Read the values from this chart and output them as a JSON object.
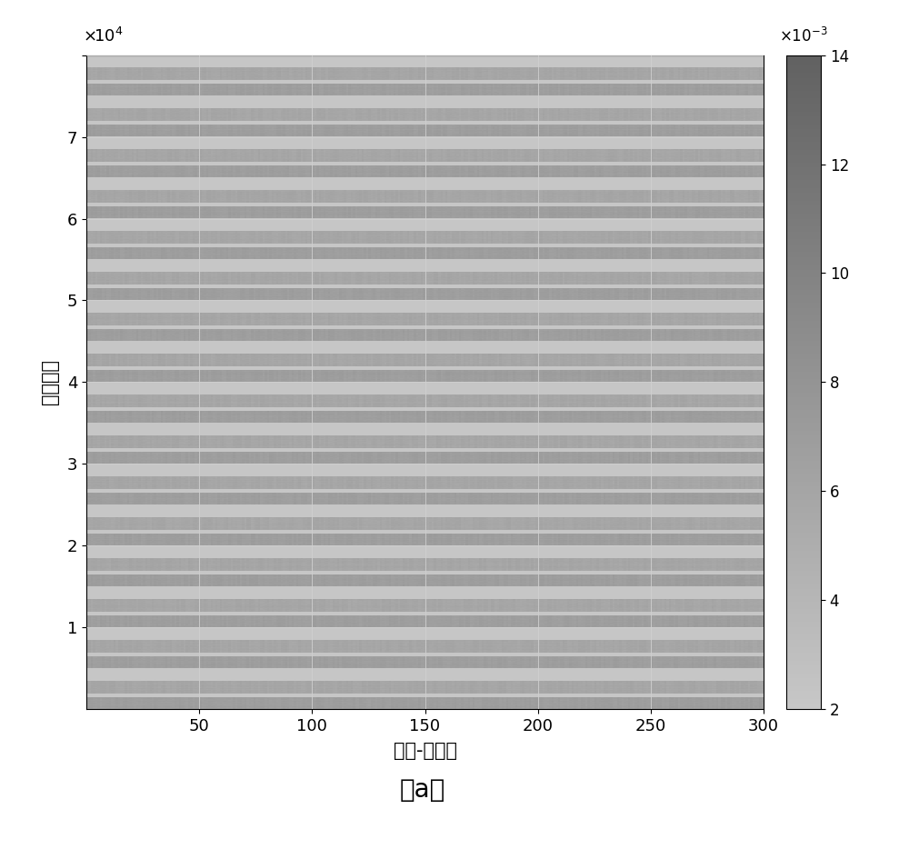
{
  "xlabel": "距离-俦仰角",
  "ylabel": "回波信号",
  "caption": "（a）",
  "xlim": [
    0,
    300
  ],
  "ylim": [
    0,
    80000
  ],
  "xticks": [
    50,
    100,
    150,
    200,
    250,
    300
  ],
  "yticks": [
    10000,
    20000,
    30000,
    40000,
    50000,
    60000,
    70000,
    80000
  ],
  "ytick_labels": [
    "1",
    "2",
    "3",
    "4",
    "5",
    "6",
    "7",
    ""
  ],
  "cbar_min": 0.002,
  "cbar_max": 0.014,
  "cbar_ticks": [
    0.002,
    0.004,
    0.006,
    0.008,
    0.01,
    0.012,
    0.014
  ],
  "cbar_tick_labels": [
    "2",
    "4",
    "6",
    "8",
    "10",
    "12",
    "14"
  ],
  "nx": 300,
  "ny": 800,
  "n_stripe_groups": 16,
  "stripe_color_dark": 0.6,
  "stripe_color_light": 0.68,
  "bg_gray": 1.0,
  "grid_color": "#d0d0d0",
  "xlabel_fontsize": 15,
  "ylabel_fontsize": 15,
  "caption_fontsize": 20,
  "tick_fontsize": 13,
  "cbar_label_fontsize": 12,
  "cbar_top_gray": 0.35,
  "cbar_bottom_gray": 0.68
}
